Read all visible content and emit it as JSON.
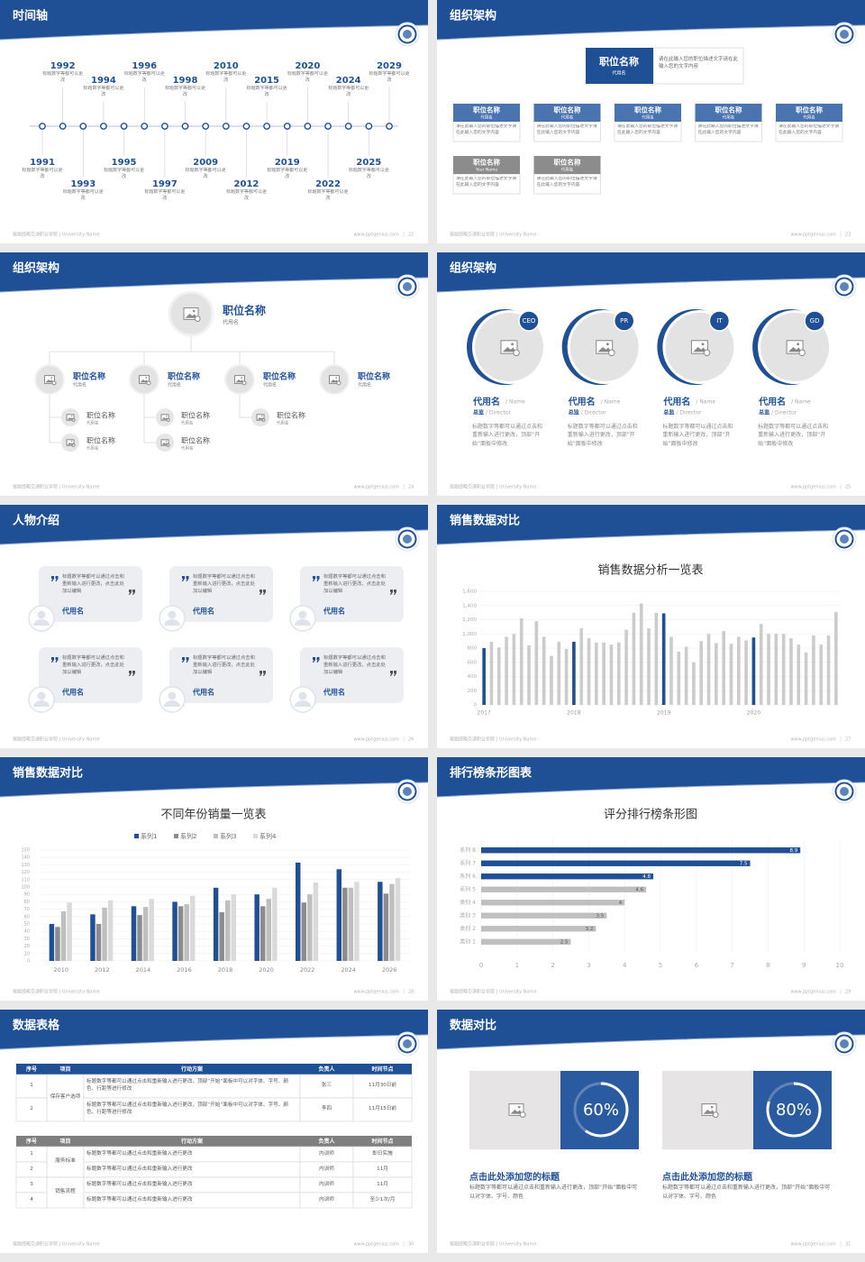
{
  "slides": [
    {
      "title": "时间轴",
      "footer": "报题经略交通职业学院 | University Name",
      "url": "www.pptgenius.com",
      "page": 22,
      "timeline": [
        {
          "year": "1991",
          "text": "标题数字等都可以更改"
        },
        {
          "year": "1992",
          "text": "标题数字等都可以更改"
        },
        {
          "year": "1993",
          "text": "标题数字等都可以更改"
        },
        {
          "year": "1994",
          "text": "标题数字等都可以更改"
        },
        {
          "year": "1995",
          "text": "标题数字等都可以更改"
        },
        {
          "year": "1996",
          "text": "标题数字等都可以更改"
        },
        {
          "year": "1997",
          "text": "标题数字等都可以更改"
        },
        {
          "year": "1998",
          "text": "标题数字等都可以更改"
        },
        {
          "year": "2009",
          "text": "标题数字等都可以更改"
        },
        {
          "year": "2010",
          "text": "标题数字等都可以更改"
        },
        {
          "year": "2012",
          "text": "标题数字等都可以更改"
        },
        {
          "year": "2015",
          "text": "标题数字等都可以更改"
        },
        {
          "year": "2019",
          "text": "标题数字等都可以更改"
        },
        {
          "year": "2020",
          "text": "标题数字等都可以更改"
        },
        {
          "year": "2022",
          "text": "标题数字等都可以更改"
        },
        {
          "year": "2024",
          "text": "标题数字等都可以更改"
        },
        {
          "year": "2025",
          "text": "标题数字等都可以更改"
        },
        {
          "year": "2029",
          "text": "标题数字等都可以更改"
        }
      ]
    },
    {
      "title": "组织架构",
      "footer": "报题经略交通职业学院 | University Name",
      "url": "www.pptgenius.com",
      "page": 23,
      "head": {
        "title": "职位名称",
        "subtitle": "代用名",
        "text": "请在此输入您的职位描述文字请在此输入您的文字内容"
      },
      "boxes": [
        {
          "title": "职位名称",
          "subtitle": "代用名",
          "color": "#4a74b0",
          "text": "请在此输入您的职位描述文字请在此输入您的文字内容"
        },
        {
          "title": "职位名称",
          "subtitle": "代用名",
          "color": "#4a74b0",
          "text": "请在此输入您的职位描述文字请在此输入您的文字内容"
        },
        {
          "title": "职位名称",
          "subtitle": "代用名",
          "color": "#4a74b0",
          "text": "请在此输入您的职位描述文字请在此输入您的文字内容"
        },
        {
          "title": "职位名称",
          "subtitle": "代用名",
          "color": "#4a74b0",
          "text": "请在此输入您的职位描述文字请在此输入您的文字内容"
        },
        {
          "title": "职位名称",
          "subtitle": "代用名",
          "color": "#4a74b0",
          "text": "请在此输入您的职位描述文字请在此输入您的文字内容"
        },
        {
          "title": "职位名称",
          "subtitle": "Your Name",
          "color": "#8c8c8c",
          "text": "请在此输入您的职位描述文字请在此输入您的文字内容"
        },
        {
          "title": "职位名称",
          "subtitle": "代用名",
          "color": "#8c8c8c",
          "text": "请在此输入您的职位描述文字请在此输入您的文字内容"
        }
      ]
    },
    {
      "title": "组织架构",
      "footer": "报题经略交通职业学院 | University Name",
      "url": "www.pptgenius.com",
      "page": 24,
      "root": {
        "title": "职位名称",
        "subtitle": "代用名"
      },
      "groups": [
        {
          "title": "职位名称",
          "subtitle": "代用名",
          "children": [
            {
              "title": "职位名称",
              "subtitle": "代用名"
            },
            {
              "title": "职位名称",
              "subtitle": "代用名"
            }
          ]
        },
        {
          "title": "职位名称",
          "subtitle": "代用名",
          "children": [
            {
              "title": "职位名称",
              "subtitle": "代用名"
            },
            {
              "title": "职位名称",
              "subtitle": "代用名"
            }
          ]
        },
        {
          "title": "职位名称",
          "subtitle": "代用名",
          "children": [
            {
              "title": "职位名称",
              "subtitle": "代用名"
            }
          ]
        },
        {
          "title": "职位名称",
          "subtitle": "代用名",
          "children": []
        }
      ]
    },
    {
      "title": "组织架构",
      "footer": "报题经略交通职业学院 | University Name",
      "url": "www.pptgenius.com",
      "page": 25,
      "members": [
        {
          "tag": "CEO",
          "name": "代用名",
          "name_en": "/ Name",
          "role": "总监",
          "role_en": "/ Director",
          "text": "标题数字等都可以通过点击和重新输入进行更改，顶部“开始”面板中修改"
        },
        {
          "tag": "PR",
          "name": "代用名",
          "name_en": "/ Name",
          "role": "总监",
          "role_en": "/ Director",
          "text": "标题数字等都可以通过点击和重新输入进行更改，顶部“开始”面板中修改"
        },
        {
          "tag": "IT",
          "name": "代用名",
          "name_en": "/ Name",
          "role": "总监",
          "role_en": "/ Director",
          "text": "标题数字等都可以通过点击和重新输入进行更改，顶部“开始”面板中修改"
        },
        {
          "tag": "GD",
          "name": "代用名",
          "name_en": "/ Name",
          "role": "总监",
          "role_en": "/ Director",
          "text": "标题数字等都可以通过点击和重新输入进行更改，顶部“开始”面板中修改"
        }
      ]
    },
    {
      "title": "人物介绍",
      "footer": "报题经略交通职业学院 | University Name",
      "url": "www.pptgenius.com",
      "page": 26,
      "quotes": [
        {
          "text": "标题数字等都可以通过点击和重新输入进行更改，点击此处加以编辑",
          "name": "代用名"
        },
        {
          "text": "标题数字等都可以通过点击和重新输入进行更改，点击此处加以编辑",
          "name": "代用名"
        },
        {
          "text": "标题数字等都可以通过点击和重新输入进行更改，点击此处加以编辑",
          "name": "代用名"
        },
        {
          "text": "标题数字等都可以通过点击和重新输入进行更改，点击此处加以编辑",
          "name": "代用名"
        },
        {
          "text": "标题数字等都可以通过点击和重新输入进行更改，点击此处加以编辑",
          "name": "代用名"
        },
        {
          "text": "标题数字等都可以通过点击和重新输入进行更改，点击此处加以编辑",
          "name": "代用名"
        }
      ]
    },
    {
      "title": "销售数据对比",
      "footer": "报题经略交通职业学院 | University Name",
      "url": "www.pptgenius.com",
      "page": 27,
      "chart_data": {
        "type": "bar",
        "title": "销售数据分析一览表",
        "categories": [
          "2017",
          null,
          null,
          null,
          null,
          null,
          null,
          null,
          null,
          null,
          null,
          null,
          "2018",
          null,
          null,
          null,
          null,
          null,
          null,
          null,
          null,
          null,
          null,
          null,
          "2019",
          null,
          null,
          null,
          null,
          null,
          null,
          null,
          null,
          null,
          null,
          null,
          "2020",
          null,
          null,
          null,
          null,
          null,
          null,
          null,
          null,
          null,
          null,
          null
        ],
        "values": [
          800,
          890,
          810,
          960,
          1000,
          1220,
          840,
          1180,
          960,
          690,
          890,
          790,
          890,
          1080,
          940,
          880,
          880,
          850,
          880,
          1060,
          1300,
          1430,
          1080,
          1300,
          1290,
          960,
          750,
          820,
          600,
          900,
          1000,
          870,
          1040,
          860,
          960,
          910,
          950,
          1140,
          1000,
          1000,
          1000,
          940,
          850,
          740,
          980,
          850,
          980,
          1310
        ],
        "colors": [
          "#1f5096",
          "#cccccc",
          "#cccccc",
          "#cccccc",
          "#cccccc",
          "#cccccc",
          "#cccccc",
          "#cccccc",
          "#cccccc",
          "#cccccc",
          "#cccccc",
          "#cccccc",
          "#1f5096",
          "#cccccc",
          "#cccccc",
          "#cccccc",
          "#cccccc",
          "#cccccc",
          "#cccccc",
          "#cccccc",
          "#cccccc",
          "#cccccc",
          "#cccccc",
          "#cccccc",
          "#1f5096",
          "#cccccc",
          "#cccccc",
          "#cccccc",
          "#cccccc",
          "#cccccc",
          "#cccccc",
          "#cccccc",
          "#cccccc",
          "#cccccc",
          "#cccccc",
          "#cccccc",
          "#1f5096",
          "#cccccc",
          "#cccccc",
          "#cccccc",
          "#cccccc",
          "#cccccc",
          "#cccccc",
          "#cccccc",
          "#cccccc",
          "#cccccc",
          "#cccccc",
          "#cccccc"
        ],
        "ylim": [
          0,
          1600
        ],
        "yticks": [
          0,
          200,
          400,
          600,
          800,
          {
            "value": 1000,
            "label": "1,000"
          },
          {
            "value": 1200,
            "label": "1,200"
          },
          {
            "value": 1400,
            "label": "1,400"
          },
          {
            "value": 1600,
            "label": "1,600"
          }
        ],
        "grid": true
      }
    },
    {
      "title": "销售数据对比",
      "footer": "报题经略交通职业学院 | University Name",
      "url": "www.pptgenius.com",
      "page": 28,
      "chart_data": {
        "type": "grouped-bar",
        "title": "不同年份销量一览表",
        "categories": [
          "2010",
          "2012",
          "2014",
          "2016",
          "2018",
          "2020",
          "2022",
          "2024",
          "2026"
        ],
        "series": [
          {
            "name": "系列1",
            "color": "#1f5096",
            "values": [
              50,
              63,
              74,
              80,
              99,
              90,
              133,
              124,
              107
            ]
          },
          {
            "name": "系列2",
            "color": "#8c8c8c",
            "values": [
              46,
              50,
              62,
              74,
              66,
              74,
              79,
              99,
              91
            ]
          },
          {
            "name": "系列3",
            "color": "#bfbfbf",
            "values": [
              67,
              72,
              73,
              77,
              82,
              84,
              90,
              99,
              104
            ]
          },
          {
            "name": "系列4",
            "color": "#dadada",
            "values": [
              79,
              82,
              84,
              88,
              90,
              99,
              106,
              107,
              112
            ]
          }
        ],
        "ylim": [
          0,
          150
        ],
        "yticks": [
          0,
          10,
          20,
          30,
          40,
          50,
          60,
          70,
          80,
          90,
          100,
          110,
          120,
          130,
          140,
          150
        ],
        "grid": true,
        "legend": "top"
      }
    },
    {
      "title": "排行榜条形图表",
      "footer": "报题经略交通职业学院 | University Name",
      "url": "www.pptgenius.com",
      "page": 29,
      "chart_data": {
        "type": "hbar",
        "title": "评分排行榜条形图",
        "categories": [
          "系列 8",
          "系列 7",
          "系列 6",
          "系列 5",
          "类别 4",
          "类别 3",
          "类别 2",
          "类别 1"
        ],
        "values": [
          8.9,
          7.5,
          4.8,
          4.6,
          4,
          3.5,
          3.2,
          2.5
        ],
        "colors": [
          "#1f5096",
          "#1f5096",
          "#1f5096",
          "#bfbfbf",
          "#bfbfbf",
          "#bfbfbf",
          "#bfbfbf",
          "#bfbfbf"
        ],
        "xlim": [
          0,
          10
        ],
        "xticks": [
          0,
          1,
          2,
          3,
          4,
          5,
          6,
          7,
          8,
          9,
          10
        ],
        "grid": true
      }
    },
    {
      "title": "数据表格",
      "footer": "报题经略交通职业学院 | University Name",
      "url": "www.pptgenius.com",
      "page": 30,
      "tables": [
        {
          "header_color": "#1f5096",
          "columns": [
            "序号",
            "项目",
            "行动方案",
            "负责人",
            "时间节点"
          ],
          "rows": [
            [
              "1",
              "保存客户选项",
              "标题数字等都可以通过点击和重新输入进行更改，顶部“开始”面板中可以对字体、字号、颜色、行距等进行修改",
              "张三",
              "11月30日前"
            ],
            [
              "2",
              null,
              "标题数字等都可以通过点击和重新输入进行更改，顶部“开始”面板中可以对字体、字号、颜色、行距等进行修改",
              "李四",
              "11月15日前"
            ]
          ]
        },
        {
          "header_color": "#7f7f7f",
          "columns": [
            "序号",
            "项目",
            "行动方案",
            "负责人",
            "时间节点"
          ],
          "rows": [
            [
              "1",
              "服务标准",
              "标题数字等都可以通过点击和重新输入进行更改",
              "内训师",
              "即日实施"
            ],
            [
              "2",
              null,
              "标题数字等都可以通过点击和重新输入进行更改",
              "内训师",
              "11月"
            ],
            [
              "3",
              "销售流程",
              "标题数字等都可以通过点击和重新输入进行更改",
              "内训师",
              "11月"
            ],
            [
              "4",
              null,
              "标题数字等都可以通过点击和重新输入进行更改",
              "内训师",
              "至少1次/月"
            ]
          ]
        }
      ]
    },
    {
      "title": "数据对比",
      "footer": "报题经略交通职业学院 | University Name",
      "url": "www.pptgenius.com",
      "page": 31,
      "cards": [
        {
          "value": 60,
          "value_label": "60%",
          "title": "点击此处添加您的标题",
          "text": "标题数字等都可以通过点击和重新输入进行更改，顶部“开始”面板中可以对字体、字号、颜色"
        },
        {
          "value": 80,
          "value_label": "80%",
          "title": "点击此处添加您的标题",
          "text": "标题数字等都可以通过点击和重新输入进行更改，顶部“开始”面板中可以对字体、字号、颜色"
        }
      ]
    }
  ]
}
